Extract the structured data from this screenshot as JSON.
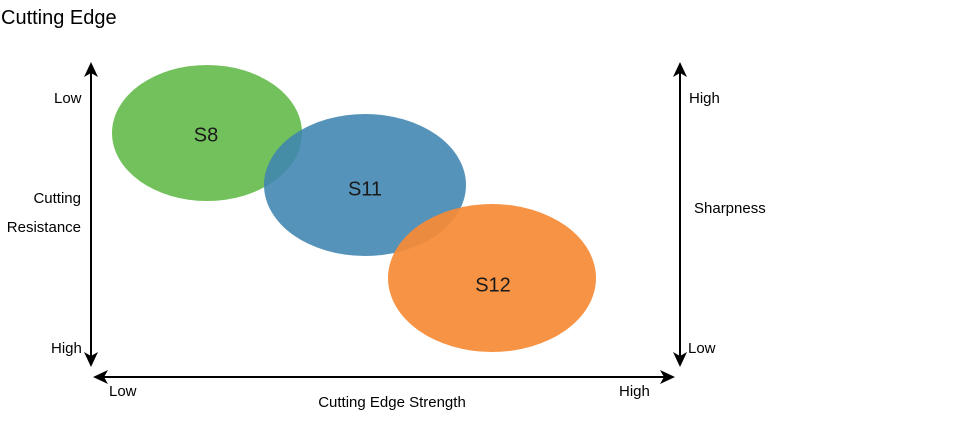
{
  "title": "Cutting Edge",
  "left_axis": {
    "top_label": "Low",
    "bottom_label": "High",
    "name_line1": "Cutting",
    "name_line2": "Resistance"
  },
  "right_axis": {
    "top_label": "High",
    "bottom_label": "Low",
    "name": "Sharpness"
  },
  "bottom_axis": {
    "left_label": "Low",
    "right_label": "High",
    "name": "Cutting Edge Strength"
  },
  "ellipses": [
    {
      "label": "S8",
      "color": "#67bc4f"
    },
    {
      "label": "S11",
      "color": "#3f84b1"
    },
    {
      "label": "S12",
      "color": "#f68a35"
    }
  ]
}
